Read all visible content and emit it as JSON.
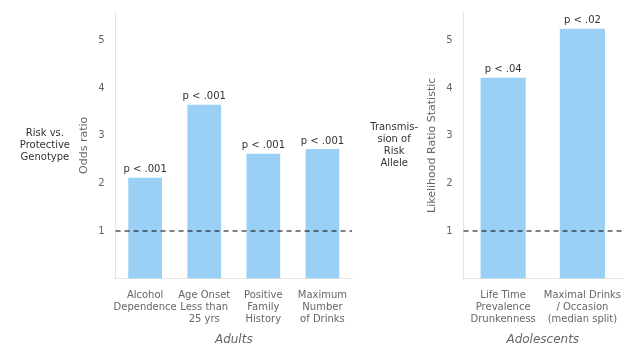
{
  "chart_data": [
    {
      "type": "bar",
      "categories": [
        "Alcohol\nDependence",
        "Age Onset\nLess than\n25 yrs",
        "Positive\nFamily\nHistory",
        "Maximum\nNumber\nof Drinks"
      ],
      "values": [
        2.12,
        3.65,
        2.62,
        2.72
      ],
      "annotations": [
        {
          "text": "p < .001",
          "category": "Alcohol\nDependence"
        },
        {
          "text": "p < .001",
          "category": "Age Onset\nLess than\n25 yrs"
        },
        {
          "text": "p < .001",
          "category": "Positive\nFamily\nHistory"
        },
        {
          "text": "p < .001",
          "category": "Maximum\nNumber\nof Drinks"
        },
        {
          "text": "Risk vs.\nProtective\nGenotype"
        }
      ],
      "x_label": "Adults",
      "y_label": "Odds ratio",
      "ylim": [
        0,
        5.6
      ],
      "yticks": [
        1,
        2,
        3,
        4,
        5
      ],
      "reference_line": 1,
      "grid": false
    },
    {
      "type": "bar",
      "categories": [
        "Life Time\nPrevalence\nDrunkenness",
        "Maximal Drinks\n/ Occasion\n(median split)"
      ],
      "values": [
        4.22,
        5.25
      ],
      "annotations": [
        {
          "text": "p < .04",
          "category": "Life Time\nPrevalence\nDrunkenness"
        },
        {
          "text": "p < .02",
          "category": "Maximal Drinks\n/ Occasion\n(median split)"
        },
        {
          "text": "Transmis-\nsion of\nRisk\nAllele"
        }
      ],
      "x_label": "Adolescents",
      "y_label": "Likelihood Ratio Statistic",
      "ylim": [
        0,
        5.6
      ],
      "yticks": [
        1,
        2,
        3,
        4,
        5
      ],
      "reference_line": 1,
      "grid": false
    }
  ]
}
